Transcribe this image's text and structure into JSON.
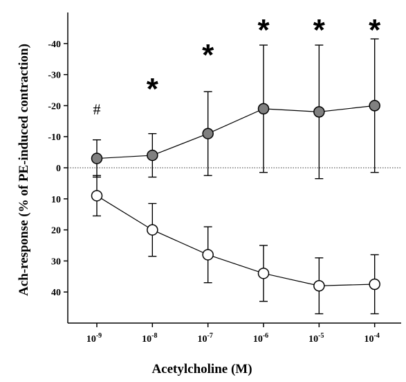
{
  "chart_data": {
    "type": "line",
    "title": "",
    "xlabel": "Acetylcholine (M)",
    "ylabel": "Ach-response (% of PE-induced contraction)",
    "x_scale": "log",
    "x_ticks": [
      {
        "value": 1e-09,
        "base": "10",
        "exp": "-9"
      },
      {
        "value": 1e-08,
        "base": "10",
        "exp": "-8"
      },
      {
        "value": 1e-07,
        "base": "10",
        "exp": "-7"
      },
      {
        "value": 1e-06,
        "base": "10",
        "exp": "-6"
      },
      {
        "value": 1e-05,
        "base": "10",
        "exp": "-5"
      },
      {
        "value": 0.0001,
        "base": "10",
        "exp": "-4"
      }
    ],
    "xlim": [
      3e-10,
      0.0003
    ],
    "y_direction": "inverted",
    "ylim": [
      50,
      -50
    ],
    "y_ticks": [
      {
        "value": -40,
        "label": "-40"
      },
      {
        "value": -30,
        "label": "-30"
      },
      {
        "value": -20,
        "label": "-20"
      },
      {
        "value": -10,
        "label": "-10"
      },
      {
        "value": 0,
        "label": "0"
      },
      {
        "value": 10,
        "label": "10"
      },
      {
        "value": 20,
        "label": "20"
      },
      {
        "value": 30,
        "label": "30"
      },
      {
        "value": 40,
        "label": "40"
      }
    ],
    "zero_line": "dotted",
    "grid": false,
    "legend": "none",
    "series": [
      {
        "marker": "filled-circle",
        "fill": "#808080",
        "x": [
          1e-09,
          1e-08,
          1e-07,
          1e-06,
          1e-05,
          0.0001
        ],
        "y": [
          -3,
          -4,
          -11,
          -19,
          -18,
          -20
        ],
        "error": [
          6,
          7,
          13.5,
          20.5,
          21.5,
          21.5
        ]
      },
      {
        "marker": "open-circle",
        "fill": "#ffffff",
        "x": [
          1e-09,
          1e-08,
          1e-07,
          1e-06,
          1e-05,
          0.0001
        ],
        "y": [
          9,
          20,
          28,
          34,
          38,
          37.5
        ],
        "error": [
          6.5,
          8.5,
          9,
          9,
          9,
          9.5
        ]
      }
    ],
    "annotations": [
      {
        "text": "#",
        "x": 1e-09,
        "y": -19
      },
      {
        "text": "*",
        "x": 1e-08,
        "y": -27
      },
      {
        "text": "*",
        "x": 1e-07,
        "y": -38
      },
      {
        "text": "*",
        "x": 1e-06,
        "y": -46
      },
      {
        "text": "*",
        "x": 1e-05,
        "y": -46
      },
      {
        "text": "*",
        "x": 0.0001,
        "y": -46
      }
    ]
  }
}
